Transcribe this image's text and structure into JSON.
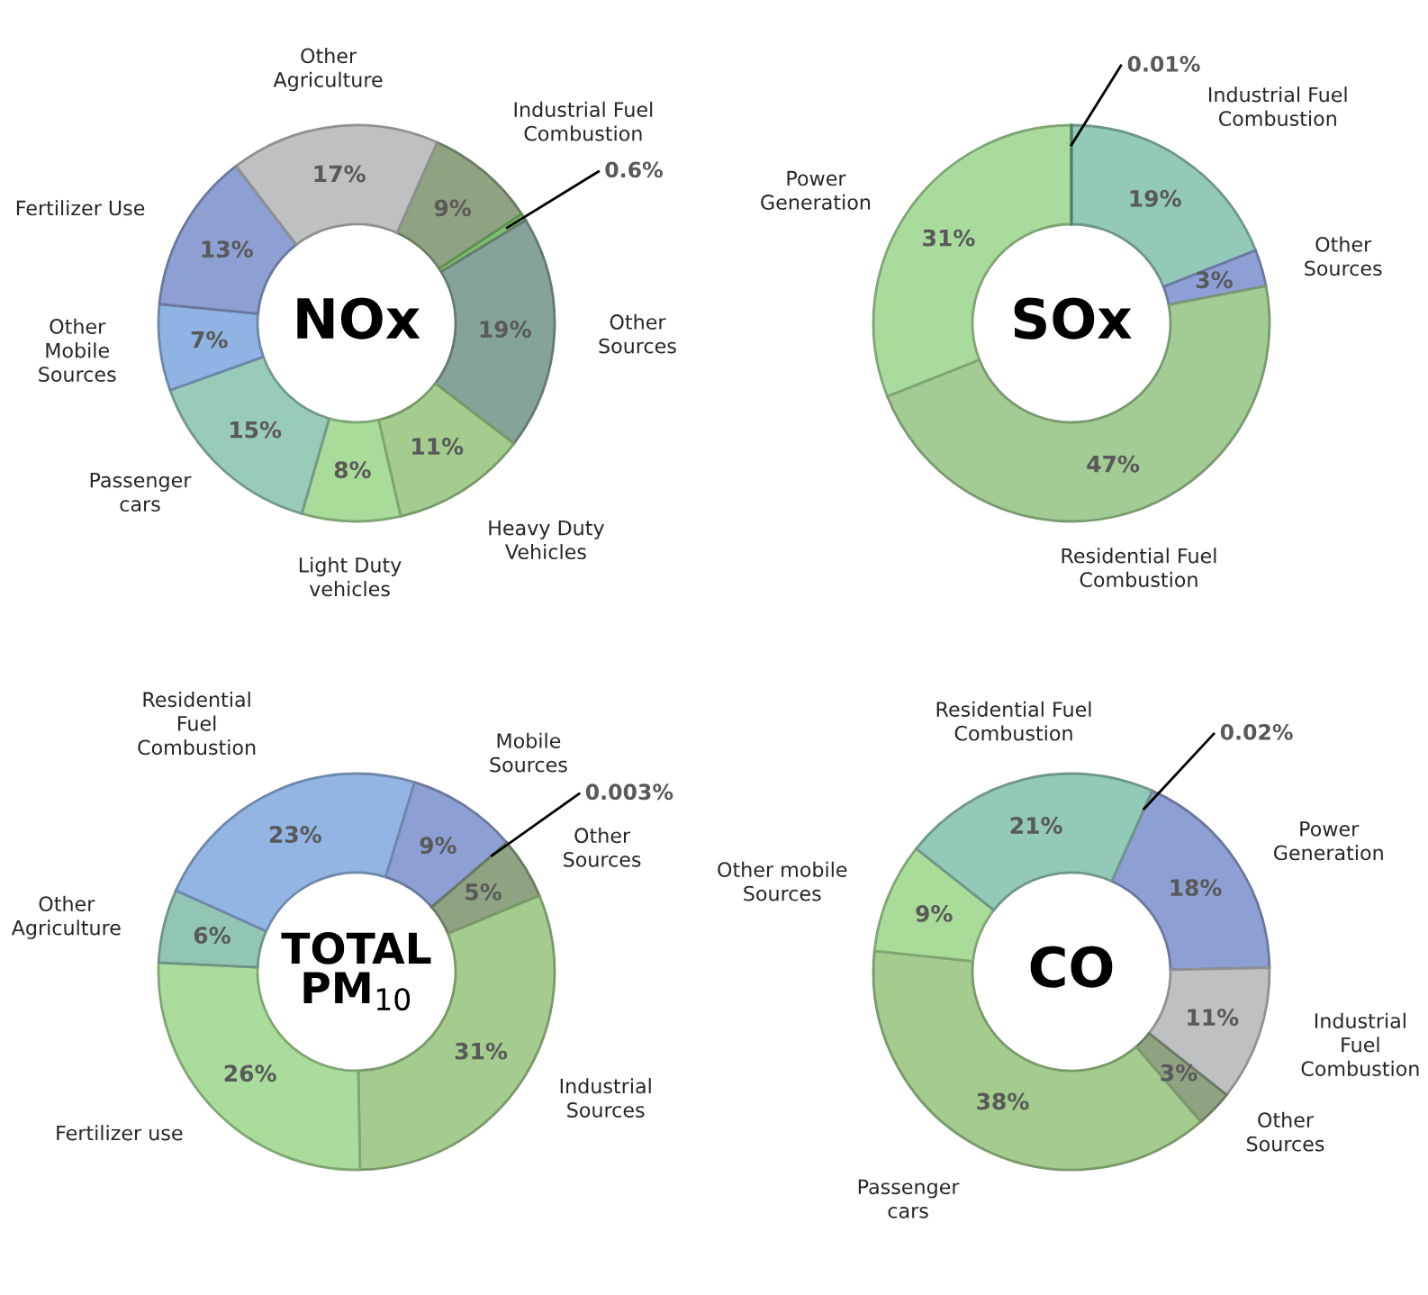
{
  "chart_data": [
    {
      "type": "donut",
      "title": "NOx",
      "categories": [
        "Industrial Fuel\nCombustion",
        null,
        "Other\nSources",
        "Heavy Duty\nVehicles",
        "Light Duty\nvehicles",
        "Passenger\ncars",
        "Other\nMobile\nSources",
        "Fertilizer Use",
        "Other\nAgriculture"
      ],
      "values": [
        9,
        0.6,
        19,
        11,
        8,
        15,
        7,
        13,
        17
      ],
      "colors": [
        "#8fa383",
        "#7fbf6a",
        "#86a39a",
        "#a3cc8e",
        "#a9dc98",
        "#98cbb8",
        "#8fb4e3",
        "#8e9fd3",
        "#bfc0c2"
      ],
      "value_labels": [
        "9%",
        "0.6%",
        "19%",
        "11%",
        "8%",
        "15%",
        "7%",
        "13%",
        "17%"
      ]
    },
    {
      "type": "donut",
      "title": "SOx",
      "categories": [
        "Industrial Fuel\nCombustion",
        "Other\nSources",
        "Residential Fuel\nCombustion",
        "Power\nGeneration",
        null
      ],
      "values": [
        19,
        3,
        47,
        31,
        0.01
      ],
      "colors": [
        "#93c9b8",
        "#8e9fd6",
        "#a3cc95",
        "#a9dc9c",
        "#5fa88c"
      ],
      "value_labels": [
        "19%",
        "3%",
        "47%",
        "31%",
        "0.01%"
      ]
    },
    {
      "type": "donut",
      "title": "TOTAL\nPM$_{10}$",
      "categories": [
        "Mobile\nSources",
        null,
        "Other\nSources",
        "Industrial\nSources",
        "Fertilizer use",
        "Other\nAgriculture",
        "Residential\nFuel\nCombustion"
      ],
      "values": [
        9,
        0.003,
        5,
        31,
        26,
        6,
        23
      ],
      "colors": [
        "#8e9fd3",
        "#4f6f4f",
        "#8fa383",
        "#a3cc8e",
        "#aadd9c",
        "#92c6b4",
        "#93b5e3"
      ],
      "value_labels": [
        "9%",
        "0.003%",
        "5%",
        "31%",
        "26%",
        "6%",
        "23%"
      ]
    },
    {
      "type": "donut",
      "title": "CO",
      "categories": [
        null,
        "Power\nGeneration",
        "Industrial\nFuel\nCombustion",
        "Other\nSources",
        "Passenger\ncars",
        "Other mobile\nSources",
        "Residential Fuel\nCombustion"
      ],
      "values": [
        0.02,
        18,
        11,
        3,
        38,
        9,
        21
      ],
      "colors": [
        "#4f81bd",
        "#8e9fd3",
        "#bfc0c2",
        "#8fa383",
        "#a3cc8e",
        "#a9dc98",
        "#93c9b8"
      ],
      "value_labels": [
        "0.02%",
        "18%",
        "11%",
        "3%",
        "38%",
        "9%",
        "21%"
      ]
    }
  ]
}
